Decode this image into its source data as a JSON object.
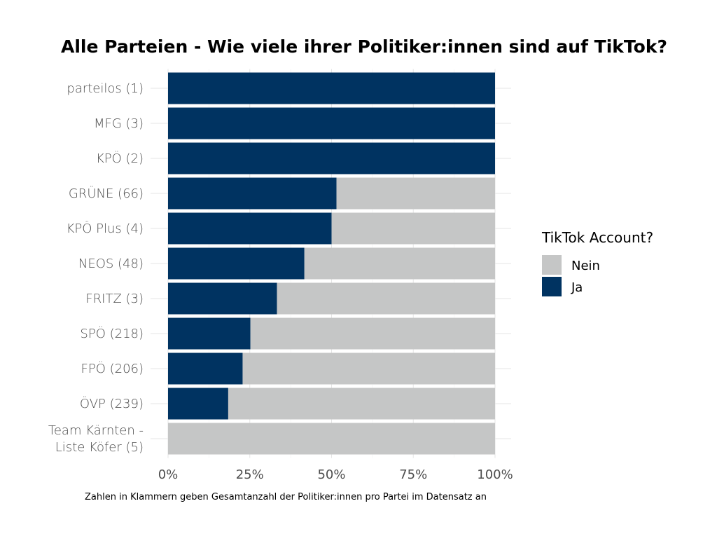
{
  "chart_data": {
    "type": "bar",
    "orientation": "horizontal",
    "stacked": true,
    "percent": true,
    "title": "Alle Parteien - Wie viele ihrer Politiker:innen sind auf TikTok?",
    "caption": "Zahlen in Klammern geben Gesamtanzahl der Politiker:innen pro Partei im Datensatz an",
    "categories": [
      "parteilos (1)",
      "MFG (3)",
      "KPÖ (2)",
      "GRÜNE (66)",
      "KPÖ Plus (4)",
      "NEOS (48)",
      "FRITZ (3)",
      "SPÖ (218)",
      "FPÖ (206)",
      "ÖVP (239)",
      "Team Kärnten -\nListe Köfer (5)"
    ],
    "series": [
      {
        "name": "Ja",
        "color": "#003361",
        "values": [
          100,
          100,
          100,
          51.5,
          50,
          41.7,
          33.3,
          25.2,
          22.8,
          18.4,
          0
        ]
      },
      {
        "name": "Nein",
        "color": "#c5c6c6",
        "values": [
          0,
          0,
          0,
          48.5,
          50,
          58.3,
          66.7,
          74.8,
          77.2,
          81.6,
          100
        ]
      }
    ],
    "xlim": [
      0,
      100
    ],
    "xticks": [
      "0%",
      "25%",
      "50%",
      "75%",
      "100%"
    ],
    "grid": true,
    "legend": {
      "title": "TikTok Account?",
      "entries": [
        "Nein",
        "Ja"
      ],
      "placement": "right"
    }
  }
}
